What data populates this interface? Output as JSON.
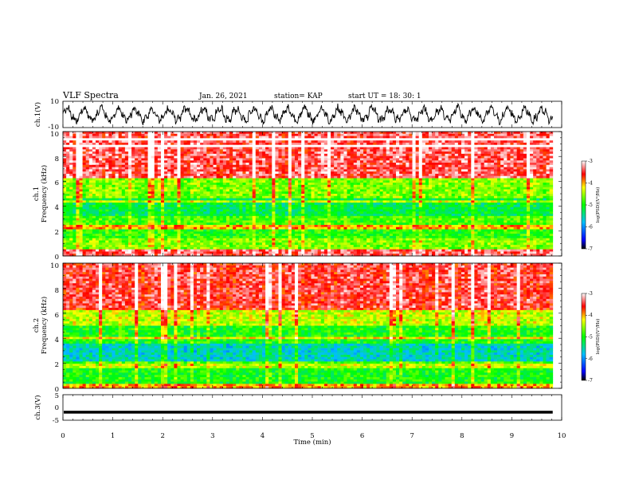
{
  "header": {
    "title": "VLF Spectra",
    "date": "Jan. 26, 2021",
    "station": "station= KAP",
    "start": "start  UT =   18: 30: 1"
  },
  "chart_data": [
    {
      "type": "line",
      "panel": "ch1-waveform",
      "ylabel": "ch.1(V)",
      "ylim": [
        -10,
        10
      ],
      "y_tick_labels": [
        "10",
        "-10"
      ],
      "xlim": [
        0,
        9.82
      ],
      "series": [
        {
          "values": "dense black oscillating trace, quasi-periodic ~0.33 min, amplitude ~±7 V"
        }
      ]
    },
    {
      "type": "heatmap",
      "panel": "ch1-spectrogram",
      "ylabel_lines": [
        "ch.1",
        "Frequency  (kHz)"
      ],
      "ylim": [
        0,
        10
      ],
      "y_tick_labels": [
        "10",
        "8",
        "6",
        "4",
        "2",
        "0"
      ],
      "colorbar": {
        "ticks": [
          "-3",
          "-4",
          "-5",
          "-6",
          "-7"
        ],
        "range": [
          -7,
          -3
        ],
        "label": "log(PSD)(V²/Hz)"
      },
      "bands": [
        {
          "f": [
            0.0,
            0.5
          ],
          "level": -3.4
        },
        {
          "f": [
            0.5,
            1.4
          ],
          "level": -4.6
        },
        {
          "f": [
            1.4,
            2.1
          ],
          "level": -4.9
        },
        {
          "f": [
            2.1,
            2.3
          ],
          "level": -4.0
        },
        {
          "f": [
            2.3,
            3.3
          ],
          "level": -4.8
        },
        {
          "f": [
            3.3,
            4.6
          ],
          "level": -5.2
        },
        {
          "f": [
            4.6,
            6.2
          ],
          "level": -4.6
        },
        {
          "f": [
            6.2,
            10.0
          ],
          "level": -3.4
        }
      ]
    },
    {
      "type": "heatmap",
      "panel": "ch2-spectrogram",
      "ylabel_lines": [
        "ch.2",
        "Frequency  (kHz)"
      ],
      "ylim": [
        0,
        10
      ],
      "y_tick_labels": [
        "10",
        "8",
        "6",
        "4",
        "2",
        "0"
      ],
      "colorbar": {
        "ticks": [
          "-3",
          "-4",
          "-5",
          "-6",
          "-7"
        ],
        "range": [
          -7,
          -3
        ],
        "label": "log(PSD)(V²/Hz)"
      },
      "bands": [
        {
          "f": [
            0.0,
            0.4
          ],
          "level": -4.0
        },
        {
          "f": [
            0.4,
            1.6
          ],
          "level": -5.0
        },
        {
          "f": [
            1.6,
            2.0
          ],
          "level": -4.4
        },
        {
          "f": [
            2.0,
            3.6
          ],
          "level": -5.6
        },
        {
          "f": [
            3.6,
            5.0
          ],
          "level": -5.0
        },
        {
          "f": [
            5.0,
            6.4
          ],
          "level": -4.4
        },
        {
          "f": [
            6.4,
            10.0
          ],
          "level": -3.5
        }
      ]
    },
    {
      "type": "line",
      "panel": "ch3-waveform",
      "ylabel": "ch.3(V)",
      "ylim": [
        -5,
        5
      ],
      "y_tick_labels": [
        "5",
        "0",
        "-5"
      ],
      "xlim": [
        0,
        9.82
      ],
      "series": [
        {
          "values": "near-constant thick black band at about -1.8 V"
        }
      ]
    }
  ],
  "time_axis": {
    "label": "Time  (min)",
    "xlim": [
      0,
      10
    ],
    "tick_labels": [
      "0",
      "1",
      "2",
      "3",
      "4",
      "5",
      "6",
      "7",
      "8",
      "9",
      "10"
    ]
  }
}
